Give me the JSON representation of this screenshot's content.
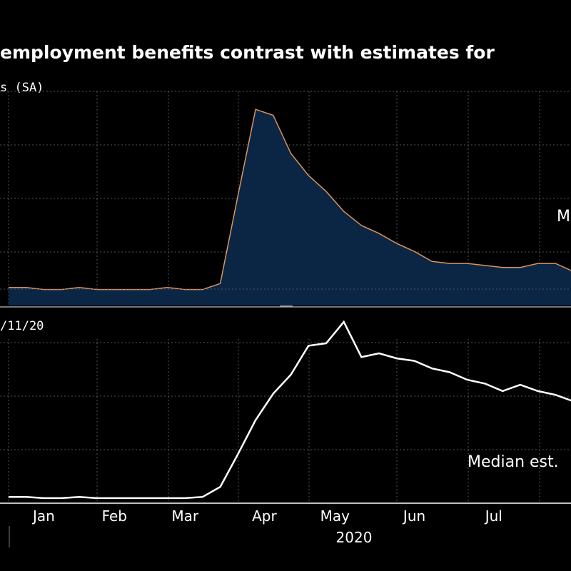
{
  "title": "employment benefits contrast with estimates for",
  "colors": {
    "background": "#000000",
    "area_fill": "#0b2545",
    "area_line": "#d9955a",
    "lower_line": "#ffffff",
    "grid": "#555555"
  },
  "chart_data": [
    {
      "type": "area",
      "subtitle": "s (SA)",
      "annotation": "Me",
      "grid": true,
      "week": [
        1,
        2,
        3,
        4,
        5,
        6,
        7,
        8,
        9,
        10,
        11,
        12,
        13,
        14,
        15,
        16,
        17,
        18,
        19,
        20,
        21,
        22,
        23,
        24,
        25,
        26,
        27,
        28,
        29,
        30,
        31,
        32,
        33
      ],
      "values": [
        0.09,
        0.09,
        0.08,
        0.08,
        0.09,
        0.08,
        0.08,
        0.08,
        0.08,
        0.09,
        0.08,
        0.08,
        0.11,
        0.55,
        0.98,
        0.95,
        0.76,
        0.65,
        0.57,
        0.47,
        0.4,
        0.36,
        0.31,
        0.27,
        0.22,
        0.21,
        0.21,
        0.2,
        0.19,
        0.19,
        0.21,
        0.21,
        0.17
      ],
      "ylim": [
        0,
        1.07
      ]
    },
    {
      "type": "line",
      "subtitle": "/11/20",
      "annotation": "Median est.",
      "grid": true,
      "week": [
        1,
        2,
        3,
        4,
        5,
        6,
        7,
        8,
        9,
        10,
        11,
        12,
        13,
        14,
        15,
        16,
        17,
        18,
        19,
        20,
        21,
        22,
        23,
        24,
        25,
        26,
        27,
        28,
        29,
        30,
        31,
        32,
        33
      ],
      "values": [
        0.05,
        0.05,
        0.04,
        0.04,
        0.05,
        0.04,
        0.04,
        0.04,
        0.04,
        0.04,
        0.04,
        0.05,
        0.13,
        0.39,
        0.66,
        0.87,
        1.02,
        1.25,
        1.27,
        1.44,
        1.16,
        1.19,
        1.15,
        1.13,
        1.07,
        1.04,
        0.98,
        0.95,
        0.89,
        0.94,
        0.89,
        0.86,
        0.81
      ],
      "ylim": [
        0,
        1.7
      ],
      "x_ticks": [
        "Jan",
        "Feb",
        "Mar",
        "Apr",
        "May",
        "Jun",
        "Jul"
      ],
      "x_tick_week": [
        3,
        7,
        11,
        15.5,
        19.5,
        24,
        28.5
      ],
      "year_label": "2020"
    }
  ]
}
